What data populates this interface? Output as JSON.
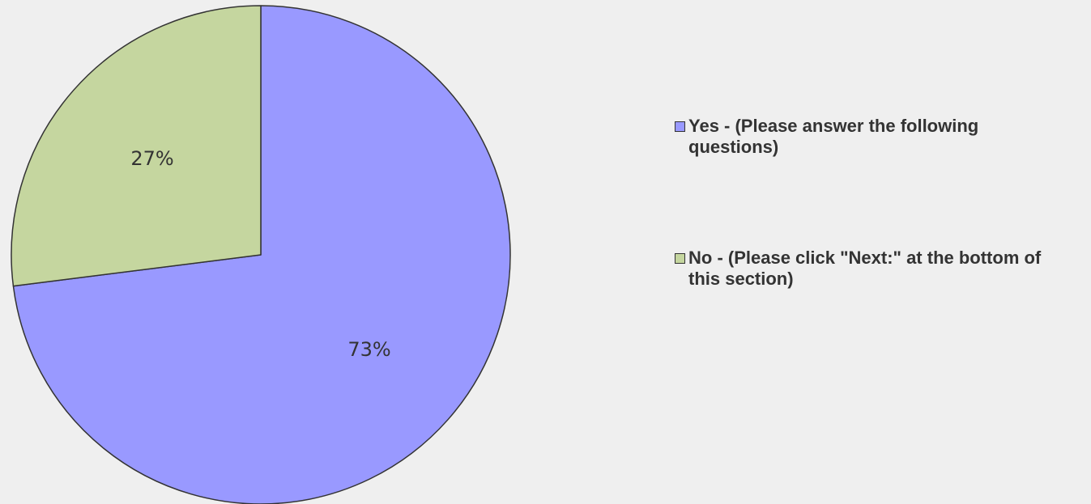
{
  "chart_data": {
    "type": "pie",
    "slices": [
      {
        "label": "Yes - (Please answer the following questions)",
        "value": 73,
        "value_label": "73%",
        "color": "#9999ff"
      },
      {
        "label": "No - (Please click \"Next:\" at the bottom of this section)",
        "value": 27,
        "value_label": "27%",
        "color": "#c5d69f"
      }
    ],
    "start_angle": "12 o'clock",
    "direction": "clockwise",
    "legend_position": "right",
    "edge_color": "#333333"
  }
}
